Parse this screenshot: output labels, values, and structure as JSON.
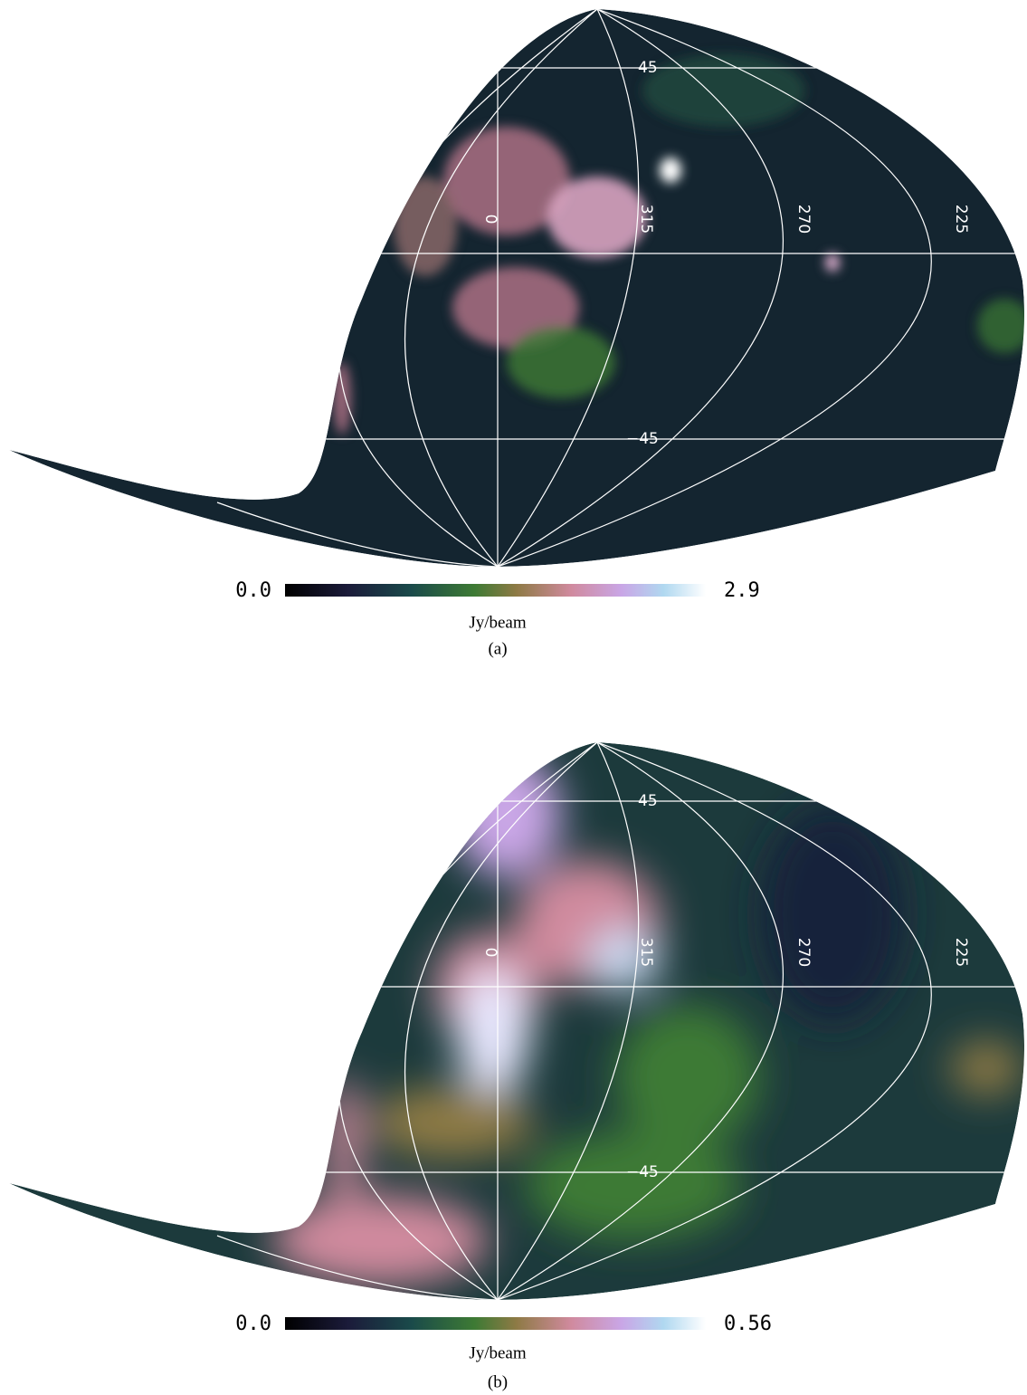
{
  "panels": [
    {
      "graticule": {
        "lat_labels": [
          "45",
          "−45"
        ],
        "lon_labels": [
          "0",
          "315",
          "270",
          "225"
        ]
      },
      "colorbar": {
        "min_label": "0.0",
        "max_label": "2.9",
        "unit": "Jy/beam"
      },
      "caption": "(a)"
    },
    {
      "graticule": {
        "lat_labels": [
          "45",
          "−45"
        ],
        "lon_labels": [
          "0",
          "315",
          "270",
          "225"
        ]
      },
      "colorbar": {
        "min_label": "0.0",
        "max_label": "0.56",
        "unit": "Jy/beam"
      },
      "caption": "(b)"
    }
  ]
}
